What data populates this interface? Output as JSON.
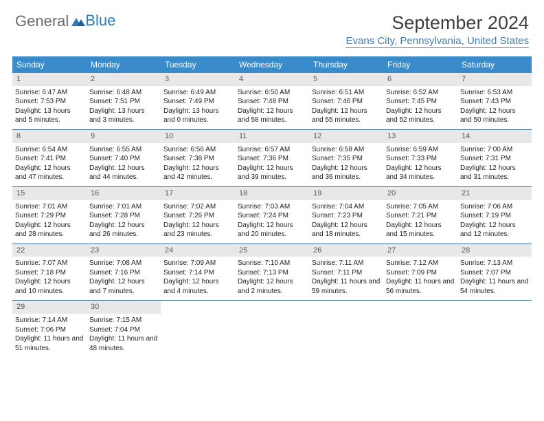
{
  "logo": {
    "part1": "General",
    "part2": "Blue"
  },
  "title": "September 2024",
  "location": "Evans City, Pennsylvania, United States",
  "colors": {
    "header_bg": "#3a8bc9",
    "header_text": "#ffffff",
    "daynum_bg": "#e8e8e8",
    "rule": "#3a6f9c",
    "location_color": "#3f7ab0",
    "logo_gray": "#6a6a6a",
    "logo_blue": "#2b7bbf"
  },
  "day_names": [
    "Sunday",
    "Monday",
    "Tuesday",
    "Wednesday",
    "Thursday",
    "Friday",
    "Saturday"
  ],
  "weeks": [
    [
      {
        "n": "1",
        "sr": "Sunrise: 6:47 AM",
        "ss": "Sunset: 7:53 PM",
        "dl": "Daylight: 13 hours and 5 minutes."
      },
      {
        "n": "2",
        "sr": "Sunrise: 6:48 AM",
        "ss": "Sunset: 7:51 PM",
        "dl": "Daylight: 13 hours and 3 minutes."
      },
      {
        "n": "3",
        "sr": "Sunrise: 6:49 AM",
        "ss": "Sunset: 7:49 PM",
        "dl": "Daylight: 13 hours and 0 minutes."
      },
      {
        "n": "4",
        "sr": "Sunrise: 6:50 AM",
        "ss": "Sunset: 7:48 PM",
        "dl": "Daylight: 12 hours and 58 minutes."
      },
      {
        "n": "5",
        "sr": "Sunrise: 6:51 AM",
        "ss": "Sunset: 7:46 PM",
        "dl": "Daylight: 12 hours and 55 minutes."
      },
      {
        "n": "6",
        "sr": "Sunrise: 6:52 AM",
        "ss": "Sunset: 7:45 PM",
        "dl": "Daylight: 12 hours and 52 minutes."
      },
      {
        "n": "7",
        "sr": "Sunrise: 6:53 AM",
        "ss": "Sunset: 7:43 PM",
        "dl": "Daylight: 12 hours and 50 minutes."
      }
    ],
    [
      {
        "n": "8",
        "sr": "Sunrise: 6:54 AM",
        "ss": "Sunset: 7:41 PM",
        "dl": "Daylight: 12 hours and 47 minutes."
      },
      {
        "n": "9",
        "sr": "Sunrise: 6:55 AM",
        "ss": "Sunset: 7:40 PM",
        "dl": "Daylight: 12 hours and 44 minutes."
      },
      {
        "n": "10",
        "sr": "Sunrise: 6:56 AM",
        "ss": "Sunset: 7:38 PM",
        "dl": "Daylight: 12 hours and 42 minutes."
      },
      {
        "n": "11",
        "sr": "Sunrise: 6:57 AM",
        "ss": "Sunset: 7:36 PM",
        "dl": "Daylight: 12 hours and 39 minutes."
      },
      {
        "n": "12",
        "sr": "Sunrise: 6:58 AM",
        "ss": "Sunset: 7:35 PM",
        "dl": "Daylight: 12 hours and 36 minutes."
      },
      {
        "n": "13",
        "sr": "Sunrise: 6:59 AM",
        "ss": "Sunset: 7:33 PM",
        "dl": "Daylight: 12 hours and 34 minutes."
      },
      {
        "n": "14",
        "sr": "Sunrise: 7:00 AM",
        "ss": "Sunset: 7:31 PM",
        "dl": "Daylight: 12 hours and 31 minutes."
      }
    ],
    [
      {
        "n": "15",
        "sr": "Sunrise: 7:01 AM",
        "ss": "Sunset: 7:29 PM",
        "dl": "Daylight: 12 hours and 28 minutes."
      },
      {
        "n": "16",
        "sr": "Sunrise: 7:01 AM",
        "ss": "Sunset: 7:28 PM",
        "dl": "Daylight: 12 hours and 26 minutes."
      },
      {
        "n": "17",
        "sr": "Sunrise: 7:02 AM",
        "ss": "Sunset: 7:26 PM",
        "dl": "Daylight: 12 hours and 23 minutes."
      },
      {
        "n": "18",
        "sr": "Sunrise: 7:03 AM",
        "ss": "Sunset: 7:24 PM",
        "dl": "Daylight: 12 hours and 20 minutes."
      },
      {
        "n": "19",
        "sr": "Sunrise: 7:04 AM",
        "ss": "Sunset: 7:23 PM",
        "dl": "Daylight: 12 hours and 18 minutes."
      },
      {
        "n": "20",
        "sr": "Sunrise: 7:05 AM",
        "ss": "Sunset: 7:21 PM",
        "dl": "Daylight: 12 hours and 15 minutes."
      },
      {
        "n": "21",
        "sr": "Sunrise: 7:06 AM",
        "ss": "Sunset: 7:19 PM",
        "dl": "Daylight: 12 hours and 12 minutes."
      }
    ],
    [
      {
        "n": "22",
        "sr": "Sunrise: 7:07 AM",
        "ss": "Sunset: 7:18 PM",
        "dl": "Daylight: 12 hours and 10 minutes."
      },
      {
        "n": "23",
        "sr": "Sunrise: 7:08 AM",
        "ss": "Sunset: 7:16 PM",
        "dl": "Daylight: 12 hours and 7 minutes."
      },
      {
        "n": "24",
        "sr": "Sunrise: 7:09 AM",
        "ss": "Sunset: 7:14 PM",
        "dl": "Daylight: 12 hours and 4 minutes."
      },
      {
        "n": "25",
        "sr": "Sunrise: 7:10 AM",
        "ss": "Sunset: 7:13 PM",
        "dl": "Daylight: 12 hours and 2 minutes."
      },
      {
        "n": "26",
        "sr": "Sunrise: 7:11 AM",
        "ss": "Sunset: 7:11 PM",
        "dl": "Daylight: 11 hours and 59 minutes."
      },
      {
        "n": "27",
        "sr": "Sunrise: 7:12 AM",
        "ss": "Sunset: 7:09 PM",
        "dl": "Daylight: 11 hours and 56 minutes."
      },
      {
        "n": "28",
        "sr": "Sunrise: 7:13 AM",
        "ss": "Sunset: 7:07 PM",
        "dl": "Daylight: 11 hours and 54 minutes."
      }
    ],
    [
      {
        "n": "29",
        "sr": "Sunrise: 7:14 AM",
        "ss": "Sunset: 7:06 PM",
        "dl": "Daylight: 11 hours and 51 minutes."
      },
      {
        "n": "30",
        "sr": "Sunrise: 7:15 AM",
        "ss": "Sunset: 7:04 PM",
        "dl": "Daylight: 11 hours and 48 minutes."
      },
      null,
      null,
      null,
      null,
      null
    ]
  ]
}
